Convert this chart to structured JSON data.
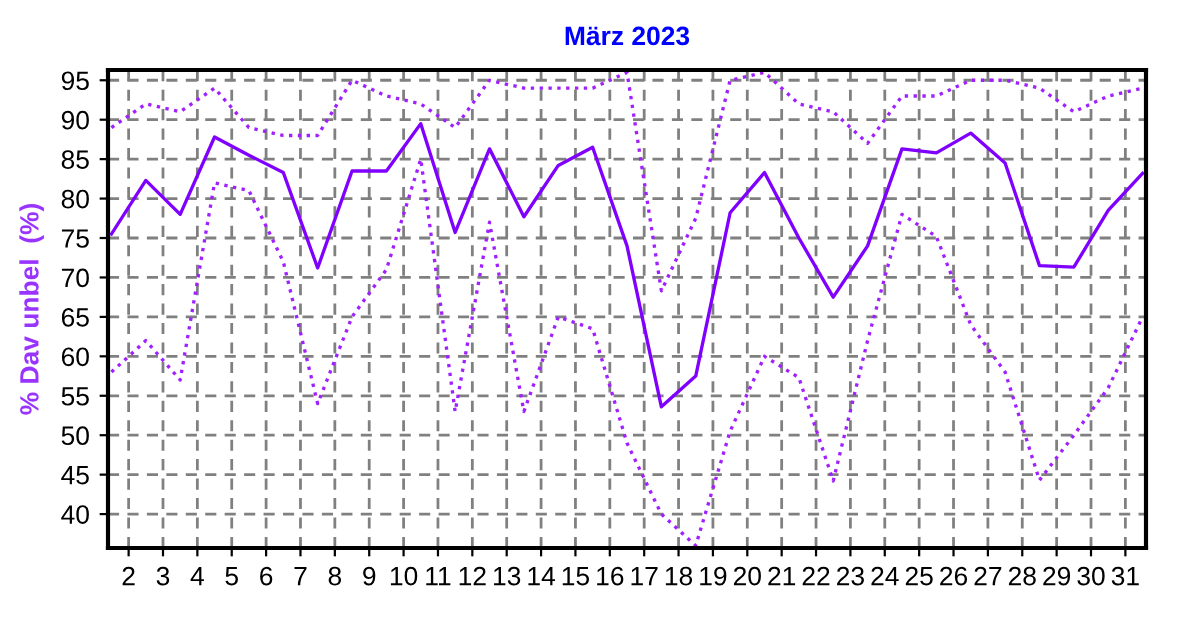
{
  "chart_data": {
    "type": "line",
    "title": "März 2023",
    "ylabel": "% Dav unbel  (%)",
    "x": [
      1.5,
      2.5,
      3.5,
      4.5,
      5.5,
      6.5,
      7.5,
      8.5,
      9.5,
      10.5,
      11.5,
      12.5,
      13.5,
      14.5,
      15.5,
      16.5,
      17.5,
      18.5,
      19.5,
      20.5,
      21.5,
      22.5,
      23.5,
      24.5,
      25.5,
      26.5,
      27.5,
      28.5,
      29.5,
      30.5,
      31.5
    ],
    "series": [
      {
        "color": "#a020ff",
        "line_style": "dotted",
        "values": [
          89,
          92,
          91,
          94,
          89,
          88,
          88,
          95,
          93,
          92,
          89,
          95,
          94,
          94,
          94,
          96,
          68.3,
          77.5,
          95,
          96,
          92,
          91,
          87,
          93,
          93,
          95,
          95,
          94,
          91,
          93,
          94
        ]
      },
      {
        "color": "#8000ff",
        "line_style": "solid",
        "values": [
          75.5,
          82.3,
          78,
          87.8,
          85.5,
          83.3,
          71.2,
          83.5,
          83.5,
          89.5,
          75.7,
          86.3,
          77.7,
          84.2,
          86.5,
          74,
          53.6,
          57.5,
          78.2,
          83.3,
          75,
          67.5,
          74,
          86.3,
          85.8,
          88.3,
          84.5,
          71.5,
          71.3,
          78.5,
          83.2
        ]
      },
      {
        "color": "#a020ff",
        "line_style": "dotted",
        "values": [
          58,
          62,
          57,
          82,
          81,
          72,
          54,
          65,
          71,
          85,
          53,
          77,
          53,
          65,
          63.5,
          49,
          40,
          36,
          50.5,
          60,
          57.3,
          44.2,
          62,
          78,
          75.2,
          64,
          58,
          44.3,
          50,
          56,
          65
        ]
      }
    ],
    "xlim": [
      1.4,
      31.6
    ],
    "ylim": [
      35.7,
      96.3
    ],
    "xticks": [
      2,
      3,
      4,
      5,
      6,
      7,
      8,
      9,
      10,
      11,
      12,
      13,
      14,
      15,
      16,
      17,
      18,
      19,
      20,
      21,
      22,
      23,
      24,
      25,
      26,
      27,
      28,
      29,
      30,
      31
    ],
    "yticks": [
      40,
      45,
      50,
      55,
      60,
      65,
      70,
      75,
      80,
      85,
      90,
      95
    ],
    "grid": true,
    "marker": "none",
    "legend": false
  }
}
